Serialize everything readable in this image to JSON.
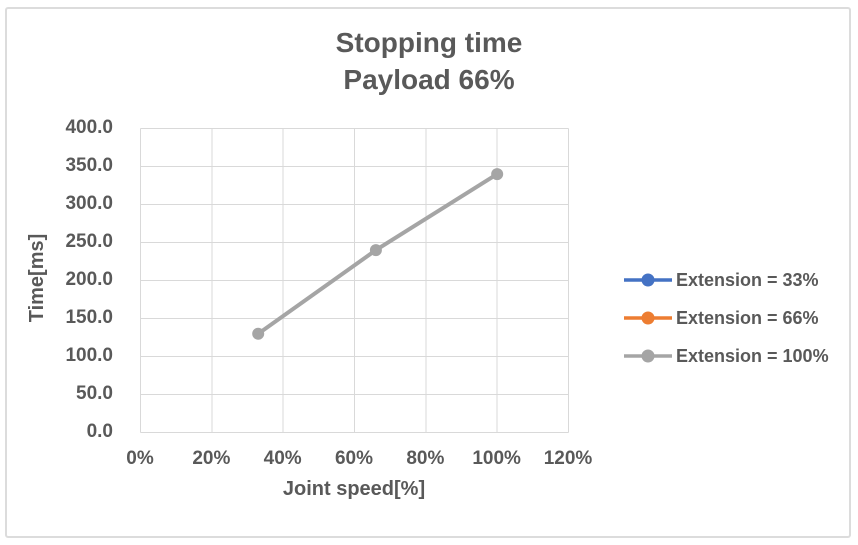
{
  "chart_data": {
    "type": "line",
    "title_line1": "Stopping time",
    "title_line2": "Payload 66%",
    "xlabel": "Joint speed[%]",
    "ylabel": "Time[ms]",
    "x_ticks": [
      "0%",
      "20%",
      "40%",
      "60%",
      "80%",
      "100%",
      "120%"
    ],
    "y_ticks": [
      "400.0",
      "350.0",
      "300.0",
      "250.0",
      "200.0",
      "150.0",
      "100.0",
      "50.0",
      "0.0"
    ],
    "xlim": [
      0,
      120
    ],
    "ylim": [
      0,
      400
    ],
    "grid": true,
    "legend_position": "right",
    "colors": {
      "text": "#595959",
      "gridline": "#d9d9d9",
      "plot_border": "#d9d9d9"
    },
    "series": [
      {
        "name": "Extension = 33%",
        "color": "#4472c4",
        "marker": "circle",
        "visible_in_plot": false,
        "points": []
      },
      {
        "name": "Extension = 66%",
        "color": "#ed7d31",
        "marker": "circle",
        "visible_in_plot": false,
        "points": []
      },
      {
        "name": "Extension = 100%",
        "color": "#a5a5a5",
        "marker": "circle",
        "visible_in_plot": true,
        "points": [
          {
            "x": 33,
            "y": 130
          },
          {
            "x": 66,
            "y": 240
          },
          {
            "x": 100,
            "y": 340
          }
        ]
      }
    ]
  }
}
